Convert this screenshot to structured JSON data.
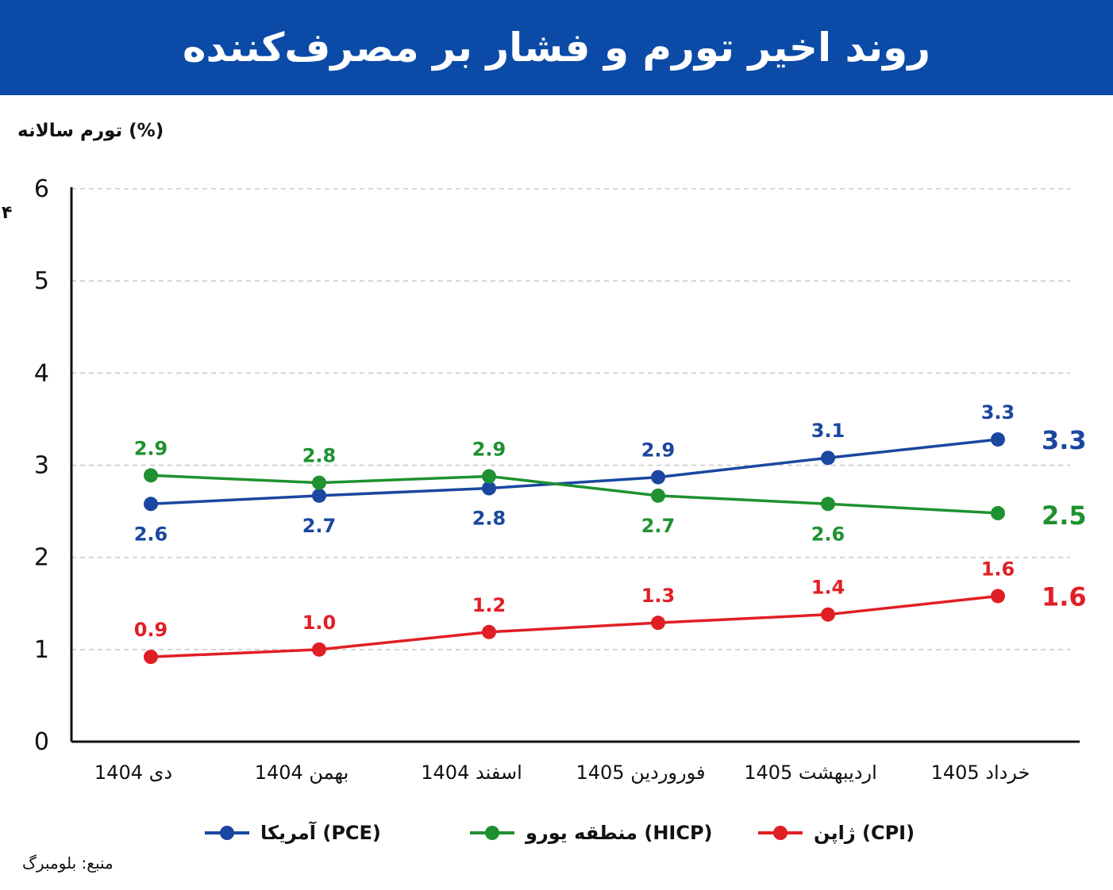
{
  "banner": {
    "title": "روند اخیر تورم و فشار بر مصرف‌کننده",
    "color": "#0b4aa6"
  },
  "stray_glyph": "۴",
  "legend_items": [
    {
      "label": "آمریکا (PCE)",
      "color": "#1a47a0"
    },
    {
      "label": "منطقه یورو (HICP)",
      "color": "#1f9130"
    },
    {
      "label": "ژاپن (CPI)",
      "color": "#e01f25"
    }
  ],
  "source": "منبع: بلومبرگ",
  "chart_data": {
    "type": "line",
    "ylabel": "تورم سالانه (%)",
    "xlabel": "",
    "ylim": [
      0,
      6
    ],
    "yticks": [
      "0",
      "1",
      "2",
      "3",
      "4",
      "5",
      "6"
    ],
    "grid": true,
    "legend_position": "bottom",
    "categories": [
      "دی 1404",
      "بهمن 1404",
      "اسفند 1404",
      "فوروردین 1405",
      "اردیبهشت 1405",
      "خرداد 1405"
    ],
    "series": [
      {
        "name": "آمریکا (PCE)",
        "color": "#1a47a0",
        "values": [
          2.58,
          2.67,
          2.75,
          2.87,
          3.08,
          3.28
        ],
        "labels": [
          "2.6",
          "2.7",
          "2.8",
          "2.9",
          "3.1",
          "3.3"
        ],
        "label_pos": [
          "below",
          "below",
          "below",
          "above",
          "above",
          "above"
        ],
        "end_label": "3.3"
      },
      {
        "name": "منطقه یورو (HICP)",
        "color": "#1f9130",
        "values": [
          2.89,
          2.81,
          2.88,
          2.67,
          2.58,
          2.48
        ],
        "labels": [
          "2.9",
          "2.8",
          "2.9",
          "2.7",
          "2.6",
          "2.5"
        ],
        "label_pos": [
          "above",
          "above",
          "above",
          "below",
          "below",
          "none"
        ],
        "end_label": "2.5"
      },
      {
        "name": "ژاپن (CPI)",
        "color": "#e01f25",
        "values": [
          0.92,
          1.0,
          1.19,
          1.29,
          1.38,
          1.58
        ],
        "labels": [
          "0.9",
          "1.0",
          "1.2",
          "1.3",
          "1.4",
          "1.6"
        ],
        "label_pos": [
          "above",
          "above",
          "above",
          "above",
          "above",
          "above"
        ],
        "end_label": "1.6"
      }
    ]
  }
}
